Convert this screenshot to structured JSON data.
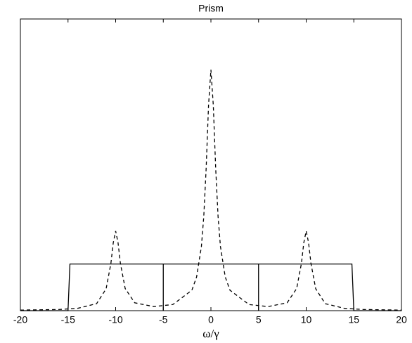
{
  "chart_data": {
    "type": "line",
    "title": "Prism",
    "x_label": "ω/γ",
    "xlim": [
      -20,
      20
    ],
    "xticks": [
      -20,
      -15,
      -10,
      -5,
      0,
      5,
      10,
      15,
      20
    ],
    "ylim": [
      0,
      1
    ],
    "series": [
      {
        "color": "#000000",
        "linestyle": "solid",
        "x": [
          -20,
          -15,
          -14.8,
          -5,
          -5,
          -5,
          5,
          5,
          5,
          14.8,
          15,
          20
        ],
        "values": [
          0,
          0,
          0.16,
          0.16,
          0,
          0.16,
          0.16,
          0,
          0.16,
          0.16,
          0,
          0
        ]
      },
      {
        "color": "#000000",
        "linestyle": "dashed",
        "x": [
          -20,
          -18,
          -16,
          -14,
          -12,
          -11,
          -10.5,
          -10.25,
          -10,
          -9.75,
          -9.5,
          -9,
          -8,
          -6,
          -4,
          -2,
          -1.5,
          -1,
          -0.75,
          -0.5,
          -0.25,
          0,
          0.25,
          0.5,
          0.75,
          1,
          1.5,
          2,
          4,
          6,
          8,
          9,
          9.5,
          9.75,
          10,
          10.25,
          10.5,
          11,
          12,
          14,
          16,
          18,
          20
        ],
        "values": [
          0.002,
          0.003,
          0.004,
          0.008,
          0.024,
          0.075,
          0.162,
          0.233,
          0.273,
          0.233,
          0.162,
          0.076,
          0.027,
          0.014,
          0.021,
          0.07,
          0.116,
          0.22,
          0.323,
          0.488,
          0.704,
          0.826,
          0.704,
          0.488,
          0.323,
          0.22,
          0.116,
          0.07,
          0.021,
          0.014,
          0.027,
          0.076,
          0.162,
          0.233,
          0.273,
          0.233,
          0.162,
          0.075,
          0.024,
          0.008,
          0.004,
          0.003,
          0.002
        ]
      }
    ]
  }
}
